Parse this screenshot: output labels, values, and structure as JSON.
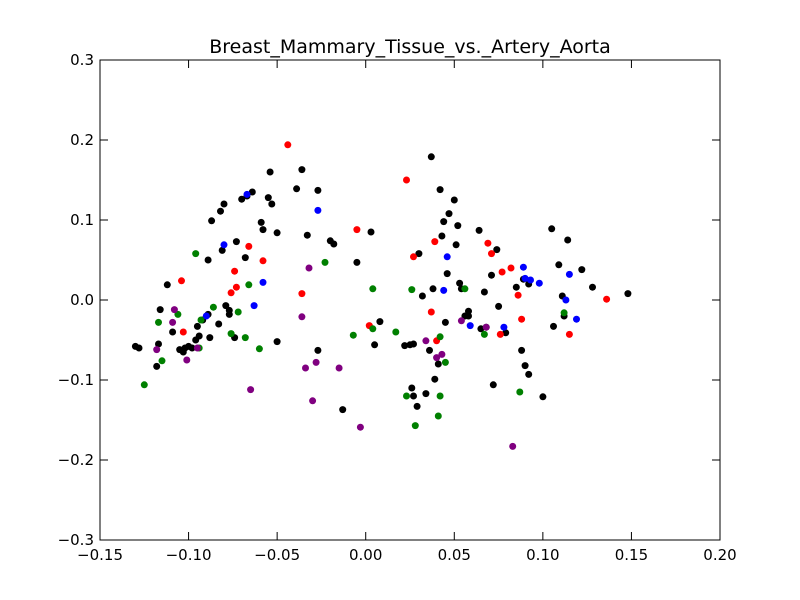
{
  "chart_data": {
    "type": "scatter",
    "title": "Breast_Mammary_Tissue_vs._Artery_Aorta",
    "xlabel": "",
    "ylabel": "",
    "xlim": [
      -0.15,
      0.2
    ],
    "ylim": [
      -0.3,
      0.3
    ],
    "xticks": [
      "−0.15",
      "−0.10",
      "−0.05",
      "0.00",
      "0.05",
      "0.10",
      "0.15",
      "0.20"
    ],
    "xtick_values": [
      -0.15,
      -0.1,
      -0.05,
      0.0,
      0.05,
      0.1,
      0.15,
      0.2
    ],
    "yticks": [
      "−0.3",
      "−0.2",
      "−0.1",
      "0.0",
      "0.1",
      "0.2",
      "0.3"
    ],
    "ytick_values": [
      -0.3,
      -0.2,
      -0.1,
      0.0,
      0.1,
      0.2,
      0.3
    ],
    "grid": false,
    "series": [
      {
        "color": "#000000",
        "points": [
          [
            -0.13,
            -0.058
          ],
          [
            -0.128,
            -0.06
          ],
          [
            -0.118,
            -0.083
          ],
          [
            -0.117,
            -0.055
          ],
          [
            -0.116,
            -0.012
          ],
          [
            -0.112,
            0.019
          ],
          [
            -0.109,
            -0.04
          ],
          [
            -0.105,
            -0.062
          ],
          [
            -0.103,
            -0.065
          ],
          [
            -0.102,
            -0.06
          ],
          [
            -0.1,
            -0.058
          ],
          [
            -0.098,
            -0.06
          ],
          [
            -0.096,
            -0.05
          ],
          [
            -0.095,
            -0.033
          ],
          [
            -0.094,
            -0.045
          ],
          [
            -0.092,
            -0.025
          ],
          [
            -0.089,
            -0.018
          ],
          [
            -0.088,
            -0.047
          ],
          [
            -0.089,
            0.05
          ],
          [
            -0.087,
            0.099
          ],
          [
            -0.083,
            -0.03
          ],
          [
            -0.082,
            0.111
          ],
          [
            -0.08,
            0.12
          ],
          [
            -0.081,
            0.062
          ],
          [
            -0.079,
            -0.007
          ],
          [
            -0.077,
            -0.013
          ],
          [
            -0.077,
            -0.018
          ],
          [
            -0.074,
            -0.047
          ],
          [
            -0.073,
            0.073
          ],
          [
            -0.07,
            0.126
          ],
          [
            -0.068,
            0.053
          ],
          [
            -0.067,
            0.13
          ],
          [
            -0.064,
            0.135
          ],
          [
            -0.059,
            0.097
          ],
          [
            -0.058,
            0.088
          ],
          [
            -0.055,
            0.128
          ],
          [
            -0.053,
            0.12
          ],
          [
            -0.054,
            0.16
          ],
          [
            -0.05,
            0.084
          ],
          [
            -0.05,
            -0.052
          ],
          [
            -0.039,
            0.139
          ],
          [
            -0.036,
            0.163
          ],
          [
            -0.033,
            0.081
          ],
          [
            -0.027,
            -0.063
          ],
          [
            -0.027,
            0.137
          ],
          [
            -0.02,
            0.074
          ],
          [
            -0.018,
            0.07
          ],
          [
            -0.013,
            -0.137
          ],
          [
            -0.005,
            0.047
          ],
          [
            0.003,
            0.085
          ],
          [
            0.005,
            -0.056
          ],
          [
            0.008,
            -0.027
          ],
          [
            0.022,
            -0.057
          ],
          [
            0.025,
            -0.056
          ],
          [
            0.027,
            -0.055
          ],
          [
            0.026,
            -0.11
          ],
          [
            0.027,
            -0.12
          ],
          [
            0.029,
            -0.133
          ],
          [
            0.03,
            0.058
          ],
          [
            0.032,
            0.005
          ],
          [
            0.034,
            -0.117
          ],
          [
            0.036,
            -0.063
          ],
          [
            0.037,
            0.179
          ],
          [
            0.038,
            0.014
          ],
          [
            0.039,
            -0.099
          ],
          [
            0.041,
            -0.08
          ],
          [
            0.042,
            0.138
          ],
          [
            0.043,
            0.08
          ],
          [
            0.044,
            0.098
          ],
          [
            0.045,
            -0.028
          ],
          [
            0.046,
            0.033
          ],
          [
            0.047,
            0.108
          ],
          [
            0.05,
            0.125
          ],
          [
            0.051,
            0.069
          ],
          [
            0.052,
            0.093
          ],
          [
            0.053,
            0.021
          ],
          [
            0.054,
            0.014
          ],
          [
            0.056,
            -0.02
          ],
          [
            0.058,
            -0.014
          ],
          [
            0.058,
            -0.02
          ],
          [
            0.064,
            0.087
          ],
          [
            0.065,
            -0.036
          ],
          [
            0.067,
            0.01
          ],
          [
            0.068,
            -0.034
          ],
          [
            0.071,
            0.031
          ],
          [
            0.072,
            -0.106
          ],
          [
            0.074,
            0.063
          ],
          [
            0.075,
            -0.008
          ],
          [
            0.079,
            -0.041
          ],
          [
            0.085,
            0.016
          ],
          [
            0.088,
            -0.063
          ],
          [
            0.089,
            0.026
          ],
          [
            0.09,
            -0.082
          ],
          [
            0.092,
            -0.093
          ],
          [
            0.092,
            0.02
          ],
          [
            0.1,
            -0.121
          ],
          [
            0.105,
            0.089
          ],
          [
            0.106,
            -0.033
          ],
          [
            0.109,
            0.044
          ],
          [
            0.111,
            0.005
          ],
          [
            0.112,
            -0.02
          ],
          [
            0.114,
            0.075
          ],
          [
            0.122,
            0.038
          ],
          [
            0.128,
            0.016
          ],
          [
            0.148,
            0.008
          ]
        ]
      },
      {
        "color": "#ff0000",
        "points": [
          [
            -0.104,
            0.024
          ],
          [
            -0.103,
            -0.04
          ],
          [
            -0.076,
            0.009
          ],
          [
            -0.074,
            0.036
          ],
          [
            -0.073,
            0.016
          ],
          [
            -0.066,
            0.067
          ],
          [
            -0.058,
            0.049
          ],
          [
            -0.044,
            0.194
          ],
          [
            -0.036,
            0.008
          ],
          [
            -0.005,
            0.088
          ],
          [
            0.002,
            -0.032
          ],
          [
            0.023,
            0.15
          ],
          [
            0.027,
            0.054
          ],
          [
            0.037,
            -0.015
          ],
          [
            0.039,
            0.073
          ],
          [
            0.04,
            -0.051
          ],
          [
            0.069,
            0.071
          ],
          [
            0.071,
            0.058
          ],
          [
            0.076,
            -0.043
          ],
          [
            0.077,
            0.035
          ],
          [
            0.082,
            0.04
          ],
          [
            0.086,
            0.006
          ],
          [
            0.088,
            -0.024
          ],
          [
            0.115,
            -0.043
          ],
          [
            0.136,
            0.001
          ]
        ]
      },
      {
        "color": "#0000ff",
        "points": [
          [
            -0.09,
            -0.02
          ],
          [
            -0.08,
            0.069
          ],
          [
            -0.067,
            0.132
          ],
          [
            -0.063,
            -0.007
          ],
          [
            -0.058,
            0.022
          ],
          [
            -0.027,
            0.112
          ],
          [
            0.044,
            0.012
          ],
          [
            0.046,
            0.054
          ],
          [
            0.059,
            -0.032
          ],
          [
            0.078,
            -0.034
          ],
          [
            0.089,
            0.041
          ],
          [
            0.09,
            0.027
          ],
          [
            0.093,
            0.025
          ],
          [
            0.098,
            0.021
          ],
          [
            0.113,
            0.0
          ],
          [
            0.115,
            0.032
          ],
          [
            0.119,
            -0.024
          ]
        ]
      },
      {
        "color": "#008000",
        "points": [
          [
            -0.125,
            -0.106
          ],
          [
            -0.117,
            -0.028
          ],
          [
            -0.115,
            -0.076
          ],
          [
            -0.106,
            -0.018
          ],
          [
            -0.096,
            0.058
          ],
          [
            -0.094,
            -0.06
          ],
          [
            -0.093,
            -0.025
          ],
          [
            -0.086,
            -0.009
          ],
          [
            -0.076,
            -0.042
          ],
          [
            -0.072,
            -0.015
          ],
          [
            -0.068,
            -0.047
          ],
          [
            -0.066,
            0.019
          ],
          [
            -0.06,
            -0.061
          ],
          [
            -0.023,
            0.047
          ],
          [
            -0.007,
            -0.044
          ],
          [
            0.004,
            -0.036
          ],
          [
            0.004,
            0.014
          ],
          [
            0.017,
            -0.04
          ],
          [
            0.023,
            -0.12
          ],
          [
            0.026,
            0.013
          ],
          [
            0.028,
            -0.157
          ],
          [
            0.041,
            -0.145
          ],
          [
            0.042,
            -0.12
          ],
          [
            0.042,
            -0.046
          ],
          [
            0.045,
            -0.078
          ],
          [
            0.056,
            0.014
          ],
          [
            0.067,
            -0.043
          ],
          [
            0.087,
            -0.115
          ],
          [
            0.112,
            -0.016
          ]
        ]
      },
      {
        "color": "#800080",
        "points": [
          [
            -0.118,
            -0.062
          ],
          [
            -0.109,
            -0.028
          ],
          [
            -0.108,
            -0.012
          ],
          [
            -0.101,
            -0.075
          ],
          [
            -0.095,
            -0.06
          ],
          [
            -0.065,
            -0.112
          ],
          [
            -0.036,
            -0.021
          ],
          [
            -0.034,
            -0.085
          ],
          [
            -0.032,
            0.04
          ],
          [
            -0.03,
            -0.126
          ],
          [
            -0.028,
            -0.078
          ],
          [
            -0.015,
            -0.085
          ],
          [
            -0.003,
            -0.159
          ],
          [
            0.034,
            -0.051
          ],
          [
            0.04,
            -0.072
          ],
          [
            0.043,
            -0.068
          ],
          [
            0.054,
            -0.026
          ],
          [
            0.068,
            -0.034
          ],
          [
            0.083,
            -0.183
          ]
        ]
      }
    ]
  }
}
